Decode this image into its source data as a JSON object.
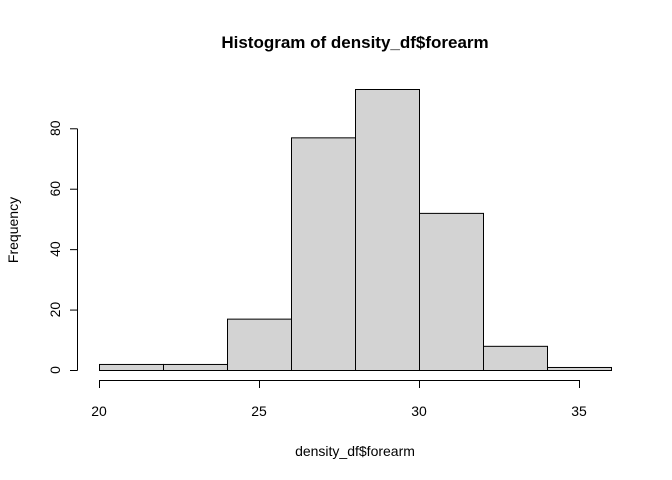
{
  "chart_data": {
    "type": "bar",
    "title": "Histogram of density_df$forearm",
    "xlabel": "density_df$forearm",
    "ylabel": "Frequency",
    "bins": [
      {
        "start": 20,
        "end": 22,
        "count": 2
      },
      {
        "start": 22,
        "end": 24,
        "count": 2
      },
      {
        "start": 24,
        "end": 26,
        "count": 17
      },
      {
        "start": 26,
        "end": 28,
        "count": 77
      },
      {
        "start": 28,
        "end": 30,
        "count": 93
      },
      {
        "start": 30,
        "end": 32,
        "count": 52
      },
      {
        "start": 32,
        "end": 34,
        "count": 8
      },
      {
        "start": 34,
        "end": 36,
        "count": 1
      }
    ],
    "xlim": [
      20,
      36
    ],
    "ylim": [
      0,
      93
    ],
    "x_ticks": [
      20,
      25,
      30,
      35
    ],
    "y_ticks": [
      0,
      20,
      40,
      60,
      80
    ],
    "bar_color": "#d3d3d3",
    "edge_color": "#000000",
    "grid": false
  }
}
